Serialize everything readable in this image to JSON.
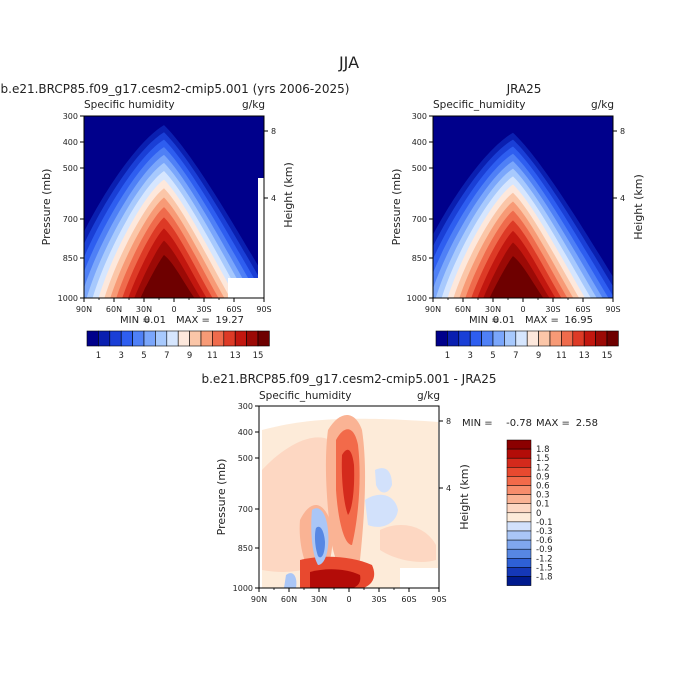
{
  "page": {
    "title": "JJA",
    "diff_title": "b.e21.BRCP85.f09_g17.cesm2-cmip5.001 - JRA25"
  },
  "chart_data": [
    {
      "type": "heatmap",
      "title": "b.e21.BRCP85.f09_g17.cesm2-cmip5.001 (yrs 2006-2025)",
      "subtitle_left": "Specific humidity",
      "subtitle_right": "g/kg",
      "ylabel": "Pressure (mb)",
      "ylabel_right": "Height (km)",
      "xticks": [
        "90N",
        "60N",
        "30N",
        "0",
        "30S",
        "60S",
        "90S"
      ],
      "yticks": [
        "300",
        "400",
        "500",
        "700",
        "850",
        "1000"
      ],
      "yticks_right": [
        "8",
        "4"
      ],
      "min_label": "MIN =",
      "min": "0.01",
      "max_label": "MAX =",
      "max": "19.27",
      "colorbar_labels": [
        "1",
        "3",
        "5",
        "7",
        "9",
        "11",
        "13",
        "15"
      ],
      "colors": [
        "#00008b",
        "#0a1fb0",
        "#1a3fd6",
        "#2e5ef0",
        "#4f80f6",
        "#7aa6fb",
        "#a7c9fd",
        "#d6e6fe",
        "#fde8dc",
        "#fbc6a8",
        "#f79a76",
        "#ef6b4c",
        "#dd3a26",
        "#c2170f",
        "#9c0a06",
        "#6e0000"
      ]
    },
    {
      "type": "heatmap",
      "title": "JRA25",
      "subtitle_left": "Specific_humidity",
      "subtitle_right": "g/kg",
      "ylabel": "Pressure (mb)",
      "ylabel_right": "Height (km)",
      "xticks": [
        "90N",
        "60N",
        "30N",
        "0",
        "30S",
        "60S",
        "90S"
      ],
      "yticks": [
        "300",
        "400",
        "500",
        "700",
        "850",
        "1000"
      ],
      "yticks_right": [
        "8",
        "4"
      ],
      "min_label": "MIN =",
      "min": "0.01",
      "max_label": "MAX =",
      "max": "16.95",
      "colorbar_labels": [
        "1",
        "3",
        "5",
        "7",
        "9",
        "11",
        "13",
        "15"
      ]
    },
    {
      "type": "heatmap",
      "subtitle_left": "Specific_humidity",
      "subtitle_right": "g/kg",
      "ylabel": "Pressure (mb)",
      "ylabel_right": "Height (km)",
      "xticks": [
        "90N",
        "60N",
        "30N",
        "0",
        "30S",
        "60S",
        "90S"
      ],
      "yticks": [
        "300",
        "400",
        "500",
        "700",
        "850",
        "1000"
      ],
      "yticks_right": [
        "8",
        "4"
      ],
      "min_label": "MIN =",
      "min": "-0.78",
      "max_label": "MAX =",
      "max": "2.58",
      "colorbar_labels": [
        "1.8",
        "1.5",
        "1.2",
        "0.9",
        "0.6",
        "0.3",
        "0.1",
        "0",
        "-0.1",
        "-0.3",
        "-0.6",
        "-0.9",
        "-1.2",
        "-1.5",
        "-1.8"
      ],
      "colors": [
        "#8b0000",
        "#b30c08",
        "#d42a1c",
        "#e8492f",
        "#f26a4a",
        "#f78d6c",
        "#fab394",
        "#fdd7c2",
        "#fdebd9",
        "#d2e1fb",
        "#aac6f6",
        "#7fa6ee",
        "#5787e3",
        "#2e60d6",
        "#1538b8",
        "#001a8e"
      ]
    }
  ]
}
